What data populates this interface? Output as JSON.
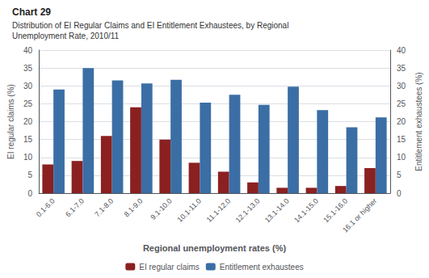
{
  "chart_data": {
    "type": "bar",
    "title": "Chart 29",
    "subtitle": "Distribution of EI Regular Claims and EI Entitlement Exhaustees, by Regional\nUnemployment Rate, 2010/11",
    "xlabel": "Regional unemployment rates (%)",
    "ylabel": "EI regular claims (%)",
    "y2label": "Entitlement exhaustees (%)",
    "categories": [
      "0.1-6.0",
      "6.1-7.0",
      "7.1-8.0",
      "8.1-9.0",
      "9.1-10.0",
      "10.1-11.0",
      "11.1-12.0",
      "12.1-13.0",
      "13.1-14.0",
      "14.1-15.0",
      "15.1-16.0",
      "16.1 or higher"
    ],
    "series": [
      {
        "name": "EI regular claims",
        "color": "#8B2020",
        "values": [
          8.0,
          9.0,
          16.0,
          24.0,
          15.0,
          8.5,
          6.0,
          3.0,
          1.5,
          1.5,
          2.0,
          7.0
        ]
      },
      {
        "name": "Entitlement exhaustees",
        "color": "#3B6EA5",
        "values": [
          29.0,
          35.0,
          31.5,
          30.7,
          31.7,
          25.3,
          27.5,
          24.7,
          29.8,
          23.2,
          18.4,
          21.2
        ]
      }
    ],
    "ylim": [
      0,
      40
    ],
    "yticks": [
      0,
      5,
      10,
      15,
      20,
      25,
      30,
      35,
      40
    ],
    "y2lim": [
      0,
      40
    ],
    "y2ticks": [
      0,
      5,
      10,
      15,
      20,
      25,
      30,
      35,
      40
    ],
    "grid": true,
    "legend": "bottom"
  }
}
